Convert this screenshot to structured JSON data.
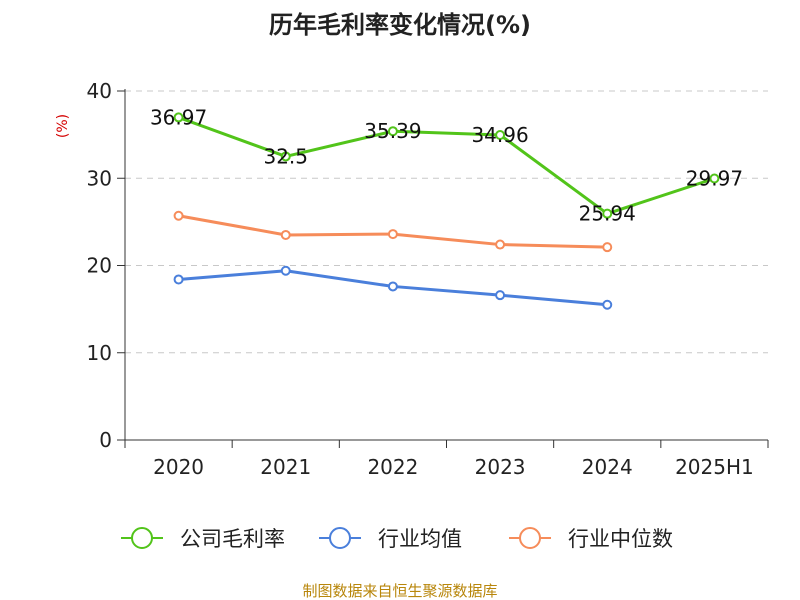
{
  "chart_data": {
    "type": "line",
    "title": "历年毛利率变化情况(%)",
    "ylabel": "(%)",
    "xlabel": "",
    "categories": [
      "2020",
      "2021",
      "2022",
      "2023",
      "2024",
      "2025H1"
    ],
    "ylim": [
      0,
      40
    ],
    "yticks": [
      0,
      10,
      20,
      30,
      40
    ],
    "grid": true,
    "legend_position": "bottom",
    "series": [
      {
        "name": "公司毛利率",
        "color": "#52c41a",
        "values": [
          36.97,
          32.5,
          35.39,
          34.96,
          25.94,
          29.97
        ],
        "labels": [
          "36.97",
          "32.5",
          "35.39",
          "34.96",
          "25.94",
          "29.97"
        ]
      },
      {
        "name": "行业均值",
        "color": "#4a7fdb",
        "values": [
          18.4,
          19.4,
          17.6,
          16.6,
          15.5,
          null
        ]
      },
      {
        "name": "行业中位数",
        "color": "#f68c5a",
        "values": [
          25.7,
          23.5,
          23.6,
          22.4,
          22.1,
          null
        ]
      }
    ]
  },
  "footer": {
    "source": "制图数据来自恒生聚源数据库"
  }
}
